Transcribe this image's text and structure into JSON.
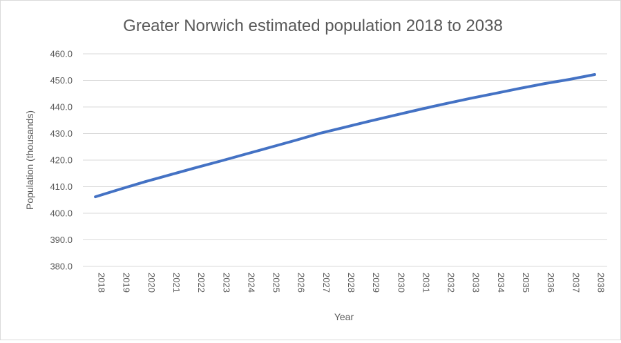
{
  "chart_data": {
    "type": "line",
    "title": "Greater Norwich estimated population 2018 to 2038",
    "xlabel": "Year",
    "ylabel": "Population (thousands)",
    "ylim": [
      380,
      460
    ],
    "yticks": [
      "380.0",
      "390.0",
      "400.0",
      "410.0",
      "420.0",
      "430.0",
      "440.0",
      "450.0",
      "460.0"
    ],
    "grid": true,
    "legend": "none",
    "categories": [
      "2018",
      "2019",
      "2020",
      "2021",
      "2022",
      "2023",
      "2024",
      "2025",
      "2026",
      "2027",
      "2028",
      "2029",
      "2030",
      "2031",
      "2032",
      "2033",
      "2034",
      "2035",
      "2036",
      "2037",
      "2038"
    ],
    "series": [
      {
        "values": [
          406.2,
          409.1,
          411.9,
          414.5,
          417.1,
          419.6,
          422.2,
          424.8,
          427.4,
          430.1,
          432.4,
          434.7,
          436.9,
          439.1,
          441.2,
          443.2,
          445.1,
          447.0,
          448.8,
          450.4,
          452.2
        ],
        "color": "#4472c4"
      }
    ]
  }
}
